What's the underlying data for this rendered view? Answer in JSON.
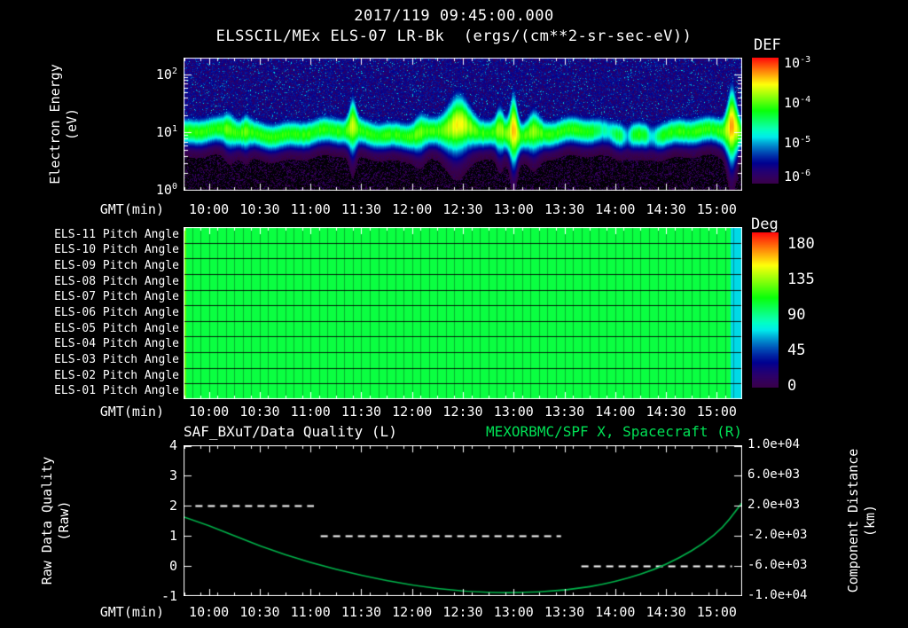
{
  "page_title": {
    "datetime": "2017/119 09:45:00.000",
    "instrument": "ELSSCIL/MEx ELS-07 LR-Bk  (ergs/(cm**2-sr-sec-eV))"
  },
  "colors": {
    "background": "#000000",
    "text": "#ffffff",
    "frame": "#ffffff",
    "title_green": "#00e055",
    "curve_green": "#00b44b",
    "dash_white": "#ffffff"
  },
  "time_axis": {
    "label": "GMT(min)",
    "range": [
      "09:45",
      "15:15"
    ],
    "ticks": [
      "10:00",
      "10:30",
      "11:00",
      "11:30",
      "12:00",
      "12:30",
      "13:00",
      "13:30",
      "14:00",
      "14:30",
      "15:00"
    ]
  },
  "chart_data": [
    {
      "type": "heatmap",
      "name": "electron-energy-spectrogram",
      "title": "ELSSCIL/MEx ELS-07 LR-Bk (ergs/(cm**2-sr-sec-eV))",
      "ylabel_lines": [
        "Electron Energy",
        "(eV)"
      ],
      "yscale": "log",
      "y_range_ev": [
        1,
        195
      ],
      "y_tick_labels": [
        {
          "base": "10",
          "exp": "2"
        },
        {
          "base": "10",
          "exp": "1"
        },
        {
          "base": "10",
          "exp": "0"
        }
      ],
      "colorbar": {
        "label": "DEF",
        "units": "ergs/(cm**2-sr-sec-eV)",
        "tick_labels": [
          {
            "base": "10",
            "exp": "-3"
          },
          {
            "base": "10",
            "exp": "-4"
          },
          {
            "base": "10",
            "exp": "-5"
          },
          {
            "base": "10",
            "exp": "-6"
          }
        ],
        "log10_range": [
          -6,
          -3
        ]
      },
      "main_band": {
        "center_ev": 10,
        "log_center": 1.0,
        "log_width": 0.17,
        "intensity": 0.62
      },
      "features": [
        {
          "time": "10:12",
          "amp": 0.18,
          "sigma_min": 2.5
        },
        {
          "time": "10:22",
          "amp": 0.15,
          "sigma_min": 2
        },
        {
          "time": "11:25",
          "amp": 0.55,
          "sigma_min": 1.8
        },
        {
          "time": "12:05",
          "amp": 0.22,
          "sigma_min": 3
        },
        {
          "time": "12:27",
          "amp": 0.62,
          "sigma_min": 6
        },
        {
          "time": "12:52",
          "amp": 0.38,
          "sigma_min": 2
        },
        {
          "time": "13:00",
          "amp": 0.85,
          "sigma_min": 2
        },
        {
          "time": "13:12",
          "amp": 0.3,
          "sigma_min": 3
        },
        {
          "time": "13:55",
          "amp": -0.3,
          "sigma_min": 4
        },
        {
          "time": "14:07",
          "amp": -0.45,
          "sigma_min": 2
        },
        {
          "time": "14:22",
          "amp": -0.4,
          "sigma_min": 2.5
        },
        {
          "time": "15:09",
          "amp": 0.95,
          "sigma_min": 2.5
        }
      ],
      "description": "Continuous warm electron band near 5-30 eV across 09:45-15:15; brightenings near 11:25, 12:25-12:35, 13:00 and 15:09; dimmer band with dropouts near 14:05 and 14:20; sparse purple-blue background speckle above the band, near-black below."
    },
    {
      "type": "heatmap",
      "name": "pitch-angle-panels",
      "rows": [
        "ELS-11 Pitch Angle",
        "ELS-10 Pitch Angle",
        "ELS-09 Pitch Angle",
        "ELS-08 Pitch Angle",
        "ELS-07 Pitch Angle",
        "ELS-06 Pitch Angle",
        "ELS-05 Pitch Angle",
        "ELS-04 Pitch Angle",
        "ELS-03 Pitch Angle",
        "ELS-02 Pitch Angle",
        "ELS-01 Pitch Angle"
      ],
      "colorbar": {
        "label": "Deg",
        "ticks": [
          180,
          135,
          90,
          45,
          0
        ],
        "range_deg": [
          0,
          180
        ]
      },
      "main_value_deg": 100,
      "left_edge_value_deg": 120,
      "right_edge_value_deg": 70,
      "right_edge_start": "15:08"
    },
    {
      "type": "line",
      "name": "quality-and-distance",
      "titles": {
        "left": "SAF_BXuT/Data Quality (L)",
        "right": "MEXORBMC/SPF X, Spacecraft (R)"
      },
      "left_axis": {
        "label_lines": [
          "Raw Data Quality",
          "(Raw)"
        ],
        "ticks": [
          4,
          3,
          2,
          1,
          0,
          -1
        ],
        "range": [
          -1,
          4
        ]
      },
      "right_axis": {
        "label_lines": [
          "Component Distance",
          "(km)"
        ],
        "tick_labels": [
          "1.0e+04",
          "6.0e+03",
          "2.0e+03",
          "-2.0e+03",
          "-6.0e+03",
          "-1.0e+04"
        ],
        "range_km": [
          -10000,
          10000
        ]
      },
      "series": [
        {
          "name": "SAF_BXuT/Data Quality",
          "axis": "left",
          "style": "dashed",
          "color": "#ffffff",
          "segments": [
            {
              "value": 2,
              "start": "09:52",
              "end": "11:02"
            },
            {
              "value": 1,
              "start": "11:06",
              "end": "13:28"
            },
            {
              "value": 0,
              "start": "13:40",
              "end": "15:09"
            }
          ]
        },
        {
          "name": "MEXORBMC/SPF X Spacecraft",
          "axis": "right",
          "style": "solid",
          "color": "#00b44b",
          "points": {
            "times": [
              "09:45",
              "10:00",
              "10:30",
              "11:00",
              "11:30",
              "12:00",
              "12:30",
              "13:00",
              "13:30",
              "14:00",
              "14:30",
              "15:00",
              "15:15"
            ],
            "values_km": [
              500,
              -600,
              -3400,
              -5600,
              -7300,
              -8600,
              -9400,
              -9600,
              -9300,
              -8200,
              -6000,
              -2000,
              2400
            ]
          }
        }
      ]
    }
  ]
}
